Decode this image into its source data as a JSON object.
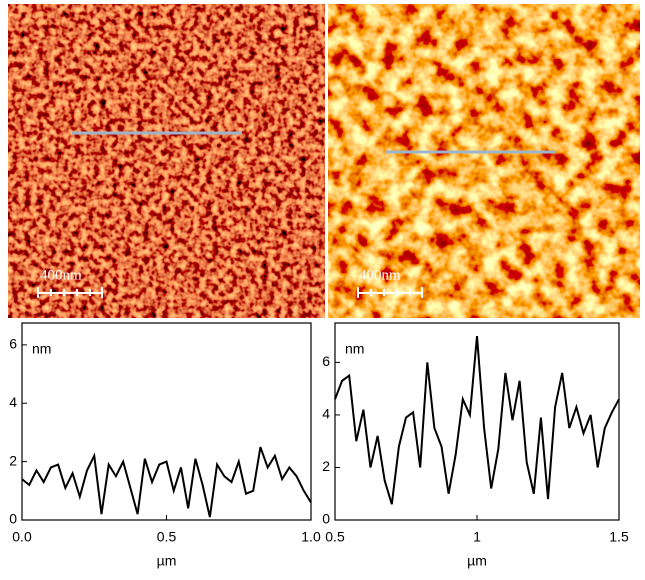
{
  "images": [
    {
      "scale_label": "400nm"
    },
    {
      "scale_label": "400nm"
    }
  ],
  "chart_data": [
    {
      "type": "line",
      "ylabel": "nm",
      "xlabel": "µm",
      "x": [
        0,
        0.025,
        0.05,
        0.075,
        0.1,
        0.125,
        0.15,
        0.175,
        0.2,
        0.225,
        0.25,
        0.275,
        0.3,
        0.325,
        0.35,
        0.375,
        0.4,
        0.425,
        0.45,
        0.475,
        0.5,
        0.525,
        0.55,
        0.575,
        0.6,
        0.625,
        0.65,
        0.675,
        0.7,
        0.725,
        0.75,
        0.775,
        0.8,
        0.825,
        0.85,
        0.875,
        0.9,
        0.925,
        0.95,
        0.975,
        1.0
      ],
      "series": [
        {
          "color": "#000000",
          "values": [
            1.4,
            1.2,
            1.7,
            1.3,
            1.8,
            1.9,
            1.1,
            1.6,
            0.8,
            1.7,
            2.2,
            0.2,
            1.9,
            1.5,
            2.0,
            1.1,
            0.2,
            2.1,
            1.3,
            1.9,
            2.0,
            1.0,
            1.8,
            0.4,
            2.1,
            1.2,
            0.1,
            1.9,
            1.5,
            1.3,
            2.0,
            0.9,
            1.0,
            2.5,
            1.8,
            2.2,
            1.4,
            1.8,
            1.5,
            1.0,
            0.6
          ]
        }
      ],
      "xlim": [
        0,
        1.0
      ],
      "ylim": [
        0,
        6.75
      ],
      "xticks": [
        {
          "value": 0,
          "label": "0.0"
        },
        0.5,
        {
          "value": 1,
          "label": "1.0"
        }
      ],
      "yticks": [
        0,
        2,
        4,
        6
      ]
    },
    {
      "type": "line",
      "ylabel": "nm",
      "xlabel": "µm",
      "x": [
        0.5,
        0.525,
        0.55,
        0.575,
        0.6,
        0.625,
        0.65,
        0.675,
        0.7,
        0.725,
        0.75,
        0.775,
        0.8,
        0.825,
        0.85,
        0.875,
        0.9,
        0.925,
        0.95,
        0.975,
        1.0,
        1.025,
        1.05,
        1.075,
        1.1,
        1.125,
        1.15,
        1.175,
        1.2,
        1.225,
        1.25,
        1.275,
        1.3,
        1.325,
        1.35,
        1.375,
        1.4,
        1.425,
        1.45,
        1.475,
        1.5
      ],
      "series": [
        {
          "color": "#000000",
          "values": [
            4.6,
            5.3,
            5.5,
            3.0,
            4.2,
            2.0,
            3.2,
            1.5,
            0.6,
            2.8,
            3.9,
            4.1,
            2.0,
            6.0,
            3.5,
            2.8,
            1.0,
            2.5,
            4.6,
            4.0,
            7.0,
            3.5,
            1.2,
            2.7,
            5.6,
            3.8,
            5.3,
            2.2,
            1.0,
            3.9,
            0.8,
            4.3,
            5.6,
            3.5,
            4.3,
            3.3,
            4.0,
            2.0,
            3.5,
            4.1,
            4.6
          ]
        }
      ],
      "xlim": [
        0.5,
        1.5
      ],
      "ylim": [
        0,
        7.5
      ],
      "xticks": [
        0.5,
        1,
        1.5
      ],
      "yticks": [
        0,
        2,
        4,
        6
      ]
    }
  ]
}
